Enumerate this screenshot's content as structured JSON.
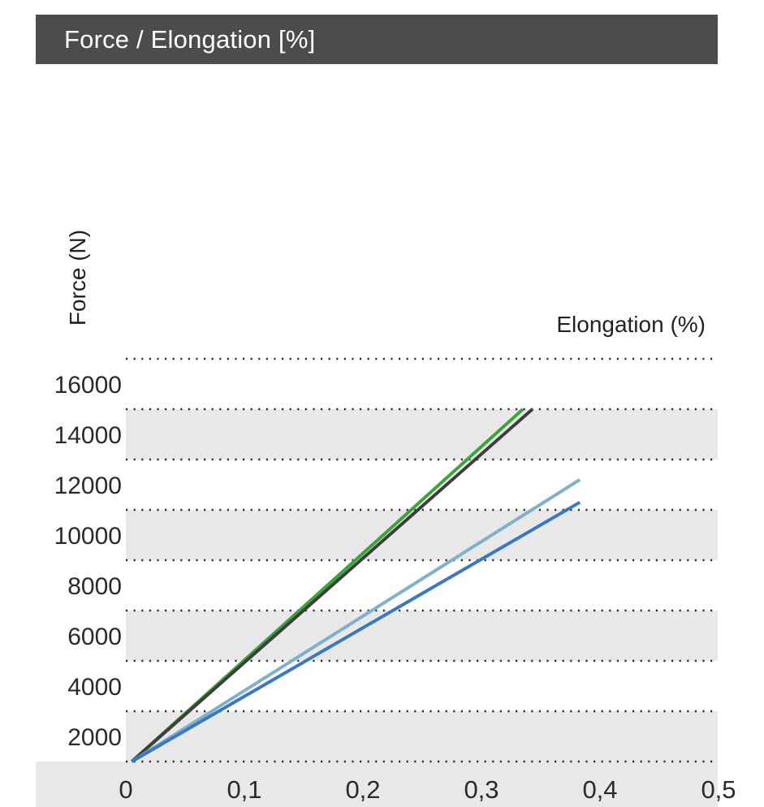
{
  "header": {
    "title": "Force / Elongation [%]"
  },
  "chart_data": {
    "type": "line",
    "title": "Force / Elongation [%]",
    "xlabel": "Elongation (%)",
    "ylabel": "Force (N)",
    "xlim": [
      0,
      0.5
    ],
    "ylim": [
      0,
      16000
    ],
    "x_ticks": [
      "0",
      "0,1",
      "0,2",
      "0,3",
      "0,4",
      "0,5"
    ],
    "y_ticks": [
      "2000",
      "4000",
      "6000",
      "8000",
      "10000",
      "12000",
      "14000",
      "16000"
    ],
    "grid": true,
    "series": [
      {
        "color": "#3aa63a",
        "x": [
          0.005,
          0.335
        ],
        "y": [
          0,
          14000
        ]
      },
      {
        "color": "#3e3e3e",
        "x": [
          0.005,
          0.343
        ],
        "y": [
          0,
          14000
        ]
      },
      {
        "color": "#7fb0cc",
        "x": [
          0.005,
          0.383
        ],
        "y": [
          0,
          11200
        ]
      },
      {
        "color": "#3a78c0",
        "x": [
          0.005,
          0.383
        ],
        "y": [
          0,
          10300
        ]
      }
    ]
  }
}
